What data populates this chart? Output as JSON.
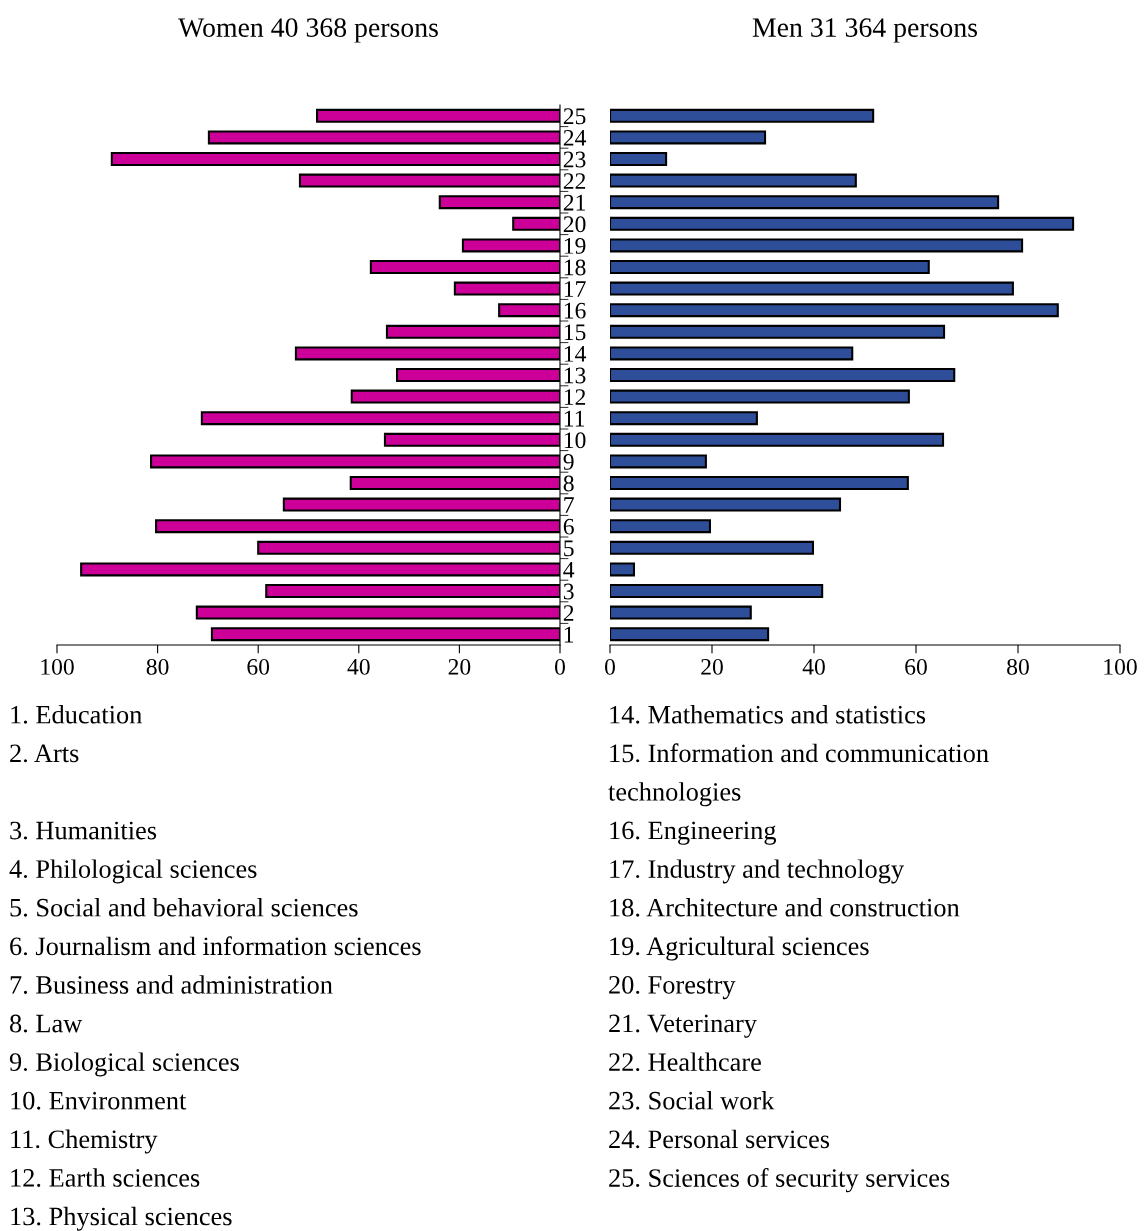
{
  "chart_data": [
    {
      "type": "bar",
      "orientation": "horizontal",
      "title": "Women 40 368 persons",
      "categories": [
        "25",
        "24",
        "23",
        "22",
        "21",
        "20",
        "19",
        "18",
        "17",
        "16",
        "15",
        "14",
        "13",
        "12",
        "11",
        "10",
        "9",
        "8",
        "7",
        "6",
        "5",
        "4",
        "3",
        "2",
        "1"
      ],
      "color": "#cc0099",
      "values": [
        48.3,
        69.8,
        89.1,
        51.7,
        23.9,
        9.3,
        19.3,
        37.6,
        20.9,
        12.1,
        34.4,
        52.5,
        32.4,
        41.4,
        71.2,
        34.8,
        81.3,
        41.6,
        54.9,
        80.3,
        60.0,
        95.2,
        58.4,
        72.2,
        69.2
      ],
      "xlim": [
        100,
        0
      ],
      "xticks": [
        100,
        80,
        60,
        40,
        20,
        0
      ],
      "grid": false,
      "annotations": [
        "1. Education",
        "2. Arts",
        "3. Humanities",
        "4. Philological sciences",
        "5. Social and behavioral sciences",
        "6. Journalism and information sciences",
        "7. Business and administration",
        "8. Law",
        "9. Biological sciences",
        "10. Environment",
        "11. Chemistry",
        "12. Earth sciences",
        "13. Physical sciences"
      ]
    },
    {
      "type": "bar",
      "orientation": "horizontal",
      "title": "Men 31 364 persons",
      "categories": [
        "25",
        "24",
        "23",
        "22",
        "21",
        "20",
        "19",
        "18",
        "17",
        "16",
        "15",
        "14",
        "13",
        "12",
        "11",
        "10",
        "9",
        "8",
        "7",
        "6",
        "5",
        "4",
        "3",
        "2",
        "1"
      ],
      "color": "#2e4e9a",
      "values": [
        51.6,
        30.4,
        11.0,
        48.2,
        76.1,
        90.8,
        80.8,
        62.5,
        79.0,
        87.8,
        65.5,
        47.5,
        67.5,
        58.6,
        28.8,
        65.3,
        18.8,
        58.4,
        45.1,
        19.6,
        39.8,
        4.7,
        41.6,
        27.6,
        31.0
      ],
      "xlim": [
        0,
        100
      ],
      "xticks": [
        0,
        20,
        40,
        60,
        80,
        100
      ],
      "grid": false,
      "tick_labels": "x",
      "annotations": [
        "14. Mathematics and statistics",
        "15. Information and communication\ntechnologies",
        "16. Engineering",
        "17. Industry and technology",
        "18. Architecture and construction",
        "19. Agricultural sciences",
        "20. Forestry",
        "21. Veterinary",
        "22. Healthcare",
        "23. Social work",
        "24. Personal services",
        "25. Sciences of security services"
      ]
    }
  ]
}
